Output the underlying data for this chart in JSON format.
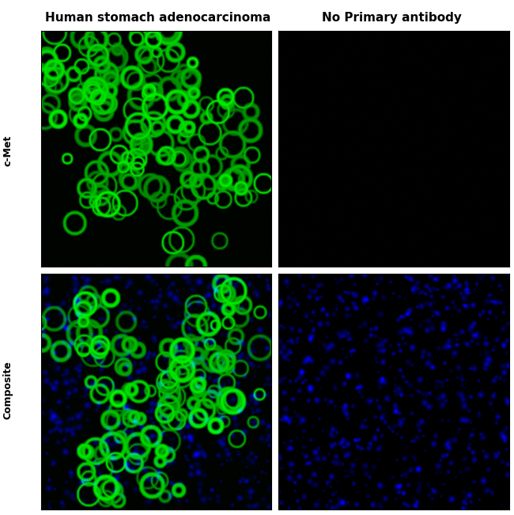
{
  "title_left": "Human stomach adenocarcinoma",
  "title_right": "No Primary antibody",
  "label_top_row": "c-Met",
  "label_bottom_row": "Composite",
  "bg_color": "#ffffff",
  "fig_width": 6.5,
  "fig_height": 6.51,
  "title_fontsize": 11,
  "row_label_fontsize": 9,
  "seed": 42
}
